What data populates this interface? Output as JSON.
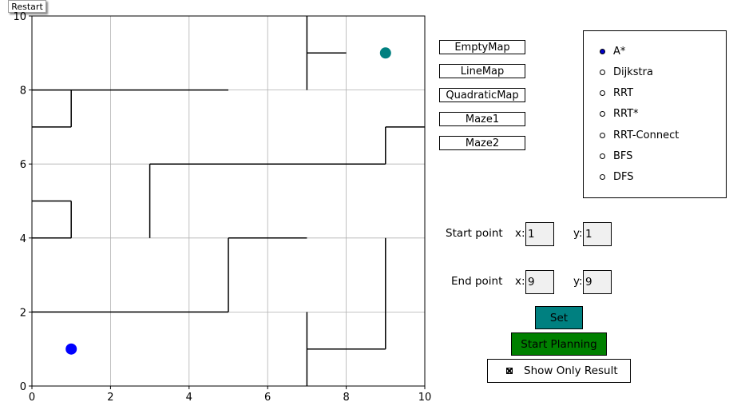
{
  "restart_label": "Restart",
  "plot": {
    "x_ticks": [
      "0",
      "2",
      "4",
      "6",
      "8",
      "10"
    ],
    "y_ticks": [
      "0",
      "2",
      "4",
      "6",
      "8",
      "10"
    ],
    "xlim": [
      0,
      10
    ],
    "ylim": [
      0,
      10
    ],
    "grid": true,
    "walls": [
      [
        [
          7,
          10
        ],
        [
          7,
          8
        ]
      ],
      [
        [
          7,
          9
        ],
        [
          8,
          9
        ]
      ],
      [
        [
          0,
          8
        ],
        [
          5,
          8
        ]
      ],
      [
        [
          1,
          8
        ],
        [
          1,
          7
        ]
      ],
      [
        [
          0,
          7
        ],
        [
          1,
          7
        ]
      ],
      [
        [
          3,
          4
        ],
        [
          3,
          6
        ]
      ],
      [
        [
          3,
          6
        ],
        [
          9,
          6
        ]
      ],
      [
        [
          9,
          6
        ],
        [
          9,
          7
        ]
      ],
      [
        [
          9,
          7
        ],
        [
          10,
          7
        ]
      ],
      [
        [
          0,
          5
        ],
        [
          1,
          5
        ]
      ],
      [
        [
          1,
          5
        ],
        [
          1,
          4
        ]
      ],
      [
        [
          0,
          4
        ],
        [
          1,
          4
        ]
      ],
      [
        [
          0,
          2
        ],
        [
          5,
          2
        ]
      ],
      [
        [
          5,
          2
        ],
        [
          5,
          4
        ]
      ],
      [
        [
          5,
          4
        ],
        [
          7,
          4
        ]
      ],
      [
        [
          9,
          4
        ],
        [
          9,
          1
        ]
      ],
      [
        [
          7,
          1
        ],
        [
          9,
          1
        ]
      ],
      [
        [
          7,
          2
        ],
        [
          7,
          0
        ]
      ]
    ],
    "start": {
      "x": 1,
      "y": 1,
      "color": "#0000ff"
    },
    "goal": {
      "x": 9,
      "y": 9,
      "color": "#008080"
    }
  },
  "map_buttons": [
    "EmptyMap",
    "LineMap",
    "QuadraticMap",
    "Maze1",
    "Maze2"
  ],
  "algorithms": [
    "A*",
    "Dijkstra",
    "RRT",
    "RRT*",
    "RRT-Connect",
    "BFS",
    "DFS"
  ],
  "selected_algorithm": "A*",
  "start_point": {
    "label": "Start point",
    "x_label": "x:",
    "y_label": "y:",
    "x": "1",
    "y": "1"
  },
  "end_point": {
    "label": "End point",
    "x_label": "x:",
    "y_label": "y:",
    "x": "9",
    "y": "9"
  },
  "set_label": "Set",
  "start_planning_label": "Start Planning",
  "show_only_result": {
    "label": "Show Only Result",
    "checked": true
  }
}
